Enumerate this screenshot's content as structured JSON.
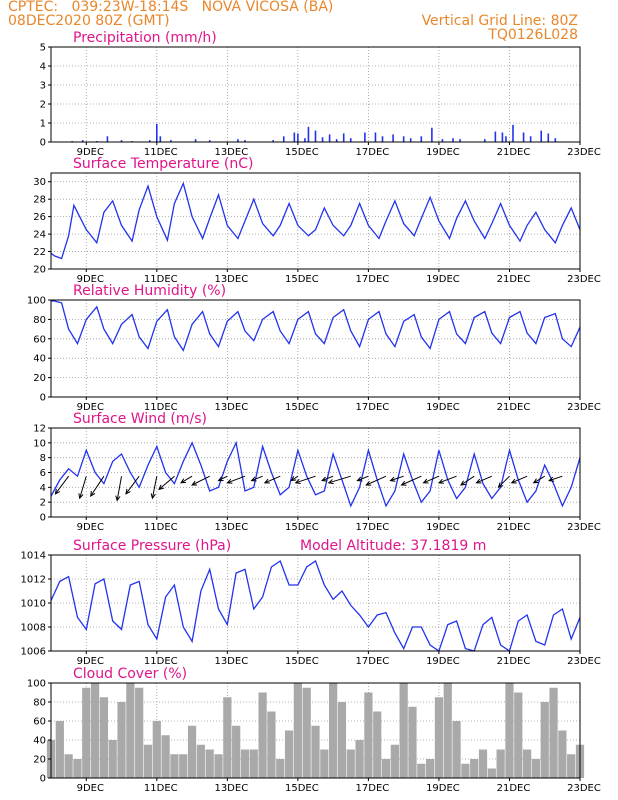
{
  "header": {
    "line1_left": "CPTEC:   039:23W-18:14S   NOVA VICOSA (BA)",
    "line2_left": "08DEC2020 80Z (GMT)",
    "line1_right": "Vertical Grid Line: 80Z",
    "line2_right": "TQ0126L028"
  },
  "x_ticks": [
    "9DEC",
    "11DEC",
    "13DEC",
    "15DEC",
    "17DEC",
    "19DEC",
    "21DEC",
    "23DEC"
  ],
  "colors": {
    "line": "#2233ee",
    "cloud": "#a9a9a9",
    "header": "#e8872b",
    "title": "#e0158a"
  },
  "chart_data": [
    {
      "type": "bar",
      "title": "Precipitation (mm/h)",
      "ylim": [
        0,
        5
      ],
      "yticks": [
        0,
        1,
        2,
        3,
        4,
        5
      ],
      "x_unit": "days since 08DEC2020 00Z",
      "x": [
        0.6,
        0.9,
        1.3,
        1.6,
        2.0,
        2.3,
        2.8,
        3.0,
        3.1,
        3.4,
        4.1,
        4.5,
        5.3,
        5.5,
        6.3,
        6.6,
        6.9,
        7.0,
        7.2,
        7.3,
        7.5,
        7.7,
        7.9,
        8.1,
        8.3,
        8.5,
        8.9,
        9.2,
        9.4,
        9.7,
        10.0,
        10.2,
        10.5,
        10.8,
        11.1,
        11.4,
        11.6,
        12.3,
        12.6,
        12.8,
        12.9,
        13.1,
        13.4,
        13.6,
        13.9,
        14.1,
        14.3
      ],
      "values": [
        0.05,
        0.1,
        0.05,
        0.3,
        0.1,
        0.05,
        0.1,
        0.95,
        0.3,
        0.1,
        0.15,
        0.1,
        0.15,
        0.1,
        0.1,
        0.3,
        0.5,
        0.45,
        0.2,
        0.8,
        0.6,
        0.25,
        0.4,
        0.15,
        0.45,
        0.2,
        0.5,
        0.5,
        0.3,
        0.4,
        0.3,
        0.2,
        0.3,
        0.75,
        0.15,
        0.2,
        0.15,
        0.15,
        0.55,
        0.5,
        0.3,
        0.9,
        0.5,
        0.3,
        0.6,
        0.45,
        0.2
      ]
    },
    {
      "type": "line",
      "title": "Surface Temperature (nC)",
      "ylim": [
        20,
        31
      ],
      "yticks": [
        20,
        22,
        24,
        26,
        28,
        30
      ],
      "x_unit": "days since 08DEC2020 00Z",
      "x": [
        0,
        0.1,
        0.3,
        0.5,
        0.65,
        1.0,
        1.3,
        1.5,
        1.75,
        2.0,
        2.3,
        2.5,
        2.75,
        3.0,
        3.3,
        3.5,
        3.75,
        4.0,
        4.3,
        4.5,
        4.75,
        5.0,
        5.3,
        5.5,
        5.75,
        6.0,
        6.3,
        6.5,
        6.75,
        7.0,
        7.3,
        7.5,
        7.75,
        8.0,
        8.3,
        8.5,
        8.75,
        9.0,
        9.3,
        9.5,
        9.75,
        10.0,
        10.3,
        10.5,
        10.75,
        11.0,
        11.3,
        11.5,
        11.75,
        12.0,
        12.3,
        12.5,
        12.75,
        13.0,
        13.3,
        13.5,
        13.75,
        14.0,
        14.3,
        14.5,
        14.75,
        15.0
      ],
      "values": [
        21.8,
        21.5,
        21.2,
        23.8,
        27.3,
        24.5,
        23.0,
        26.5,
        27.8,
        25.0,
        23.2,
        26.8,
        29.5,
        26.0,
        23.3,
        27.5,
        29.8,
        26.0,
        23.5,
        25.8,
        28.5,
        25.0,
        23.5,
        25.5,
        28.0,
        25.2,
        23.8,
        25.0,
        27.5,
        25.0,
        23.8,
        24.5,
        27.0,
        25.0,
        23.8,
        25.0,
        27.5,
        25.0,
        23.5,
        25.5,
        27.8,
        25.2,
        23.8,
        25.8,
        28.2,
        25.5,
        23.5,
        25.8,
        27.8,
        25.5,
        23.5,
        25.2,
        27.5,
        25.0,
        23.2,
        25.0,
        26.5,
        24.5,
        23.0,
        25.0,
        27.0,
        24.5
      ]
    },
    {
      "type": "line",
      "title": "Relative Humidity (%)",
      "ylim": [
        0,
        100
      ],
      "yticks": [
        0,
        20,
        40,
        60,
        80,
        100
      ],
      "x_unit": "days since 08DEC2020 00Z",
      "x": [
        0,
        0.1,
        0.3,
        0.5,
        0.75,
        1.0,
        1.3,
        1.5,
        1.75,
        2.0,
        2.3,
        2.5,
        2.75,
        3.0,
        3.3,
        3.5,
        3.75,
        4.0,
        4.3,
        4.5,
        4.75,
        5.0,
        5.3,
        5.5,
        5.75,
        6.0,
        6.3,
        6.5,
        6.75,
        7.0,
        7.3,
        7.5,
        7.75,
        8.0,
        8.3,
        8.5,
        8.75,
        9.0,
        9.3,
        9.5,
        9.75,
        10.0,
        10.3,
        10.5,
        10.75,
        11.0,
        11.3,
        11.5,
        11.75,
        12.0,
        12.3,
        12.5,
        12.75,
        13.0,
        13.3,
        13.5,
        13.75,
        14.0,
        14.3,
        14.5,
        14.75,
        15.0
      ],
      "values": [
        99,
        99,
        97,
        70,
        55,
        80,
        93,
        70,
        55,
        75,
        85,
        62,
        50,
        78,
        90,
        62,
        48,
        75,
        88,
        65,
        52,
        78,
        88,
        68,
        58,
        80,
        88,
        68,
        55,
        80,
        88,
        65,
        55,
        82,
        90,
        68,
        52,
        80,
        88,
        65,
        52,
        78,
        85,
        62,
        50,
        80,
        88,
        65,
        55,
        82,
        88,
        66,
        55,
        82,
        88,
        66,
        55,
        82,
        86,
        60,
        52,
        72
      ]
    },
    {
      "type": "line",
      "title": "Surface Wind (m/s)",
      "ylim": [
        0,
        12
      ],
      "yticks": [
        0,
        2,
        4,
        6,
        8,
        10,
        12
      ],
      "x_unit": "days since 08DEC2020 00Z",
      "x": [
        0,
        0.25,
        0.5,
        0.75,
        1.0,
        1.25,
        1.5,
        1.75,
        2.0,
        2.25,
        2.5,
        2.75,
        3.0,
        3.25,
        3.5,
        3.75,
        4.0,
        4.25,
        4.5,
        4.75,
        5.0,
        5.25,
        5.5,
        5.75,
        6.0,
        6.25,
        6.5,
        6.75,
        7.0,
        7.25,
        7.5,
        7.75,
        8.0,
        8.25,
        8.5,
        8.75,
        9.0,
        9.25,
        9.5,
        9.75,
        10.0,
        10.25,
        10.5,
        10.75,
        11.0,
        11.25,
        11.5,
        11.75,
        12.0,
        12.25,
        12.5,
        12.75,
        13.0,
        13.25,
        13.5,
        13.75,
        14.0,
        14.25,
        14.5,
        14.75,
        15.0
      ],
      "values": [
        2.8,
        5.0,
        6.5,
        5.5,
        9.0,
        6.0,
        4.5,
        7.5,
        8.5,
        6.0,
        4.0,
        7.0,
        9.5,
        6.0,
        4.5,
        7.5,
        10.0,
        7.0,
        3.5,
        4.0,
        7.5,
        10.0,
        3.5,
        4.0,
        9.5,
        6.0,
        3.0,
        4.0,
        9.0,
        5.5,
        3.0,
        3.5,
        8.5,
        5.0,
        1.5,
        4.0,
        9.0,
        5.0,
        1.5,
        3.5,
        8.5,
        5.0,
        2.0,
        3.5,
        9.0,
        5.0,
        2.5,
        4.0,
        8.5,
        4.5,
        2.5,
        4.0,
        9.0,
        5.0,
        2.0,
        3.5,
        7.0,
        4.5,
        1.5,
        4.0,
        8.0
      ],
      "arrows": {
        "x": [
          0.5,
          1.0,
          1.5,
          2.0,
          2.5,
          3.0,
          3.5,
          4.0,
          4.5,
          5.0,
          5.5,
          6.0,
          6.5,
          7.0,
          7.5,
          8.0,
          8.5,
          9.0,
          9.5,
          10.0,
          10.5,
          11.0,
          11.5,
          12.0,
          12.5,
          13.0,
          13.5,
          14.0,
          14.5
        ],
        "u": [
          -0.6,
          -0.3,
          -0.6,
          -0.2,
          -0.6,
          -0.2,
          -0.7,
          -0.5,
          -0.8,
          -0.4,
          -0.8,
          -0.5,
          -0.7,
          -0.3,
          -0.9,
          -0.5,
          -1.0,
          -0.5,
          -0.9,
          -0.6,
          -0.9,
          -0.7,
          -0.8,
          -0.6,
          -0.7,
          -0.5,
          -0.7,
          -0.5,
          -0.6
        ],
        "v": [
          -0.8,
          -1.0,
          -0.9,
          -1.1,
          -0.8,
          -1.0,
          -0.6,
          -0.3,
          -0.4,
          -0.2,
          -0.3,
          -0.2,
          -0.3,
          -0.2,
          -0.3,
          -0.2,
          -0.3,
          -0.2,
          -0.4,
          -0.2,
          -0.4,
          -0.3,
          -0.3,
          -0.4,
          -0.3,
          -0.5,
          -0.3,
          -0.3,
          -0.2
        ]
      }
    },
    {
      "type": "line",
      "title": "Surface Pressure (hPa)",
      "annotation": "Model Altitude: 37.1819 m",
      "ylim": [
        1006,
        1014
      ],
      "yticks": [
        1006,
        1008,
        1010,
        1012,
        1014
      ],
      "x_unit": "days since 08DEC2020 00Z",
      "x": [
        0,
        0.25,
        0.5,
        0.75,
        1.0,
        1.25,
        1.5,
        1.75,
        2.0,
        2.25,
        2.5,
        2.75,
        3.0,
        3.25,
        3.5,
        3.75,
        4.0,
        4.25,
        4.5,
        4.75,
        5.0,
        5.25,
        5.5,
        5.75,
        6.0,
        6.25,
        6.5,
        6.75,
        7.0,
        7.25,
        7.5,
        7.75,
        8.0,
        8.25,
        8.5,
        8.75,
        9.0,
        9.25,
        9.5,
        9.75,
        10.0,
        10.25,
        10.5,
        10.75,
        11.0,
        11.25,
        11.5,
        11.75,
        12.0,
        12.25,
        12.5,
        12.75,
        13.0,
        13.25,
        13.5,
        13.75,
        14.0,
        14.25,
        14.5,
        14.75,
        15.0
      ],
      "values": [
        1010.2,
        1011.8,
        1012.2,
        1008.8,
        1007.8,
        1011.6,
        1012.0,
        1008.5,
        1007.8,
        1011.5,
        1011.8,
        1008.2,
        1007.0,
        1010.5,
        1011.5,
        1008.0,
        1006.8,
        1011.0,
        1012.8,
        1009.5,
        1008.2,
        1012.5,
        1012.8,
        1009.5,
        1010.5,
        1013.0,
        1013.5,
        1011.5,
        1011.5,
        1013.0,
        1013.5,
        1011.5,
        1010.3,
        1011.0,
        1009.8,
        1009.0,
        1008.0,
        1009.0,
        1009.2,
        1007.5,
        1006.2,
        1008.0,
        1008.0,
        1006.5,
        1006.0,
        1008.2,
        1008.5,
        1006.2,
        1006.0,
        1008.2,
        1008.8,
        1006.5,
        1006.0,
        1008.5,
        1009.0,
        1006.8,
        1006.5,
        1009.0,
        1009.5,
        1007.0,
        1008.8
      ]
    },
    {
      "type": "bar",
      "title": "Cloud Cover (%)",
      "ylim": [
        0,
        100
      ],
      "yticks": [
        0,
        20,
        40,
        60,
        80,
        100
      ],
      "x_unit": "days since 08DEC2020 00Z",
      "x": [
        0,
        0.25,
        0.5,
        0.75,
        1.0,
        1.25,
        1.5,
        1.75,
        2.0,
        2.25,
        2.5,
        2.75,
        3.0,
        3.25,
        3.5,
        3.75,
        4.0,
        4.25,
        4.5,
        4.75,
        5.0,
        5.25,
        5.5,
        5.75,
        6.0,
        6.25,
        6.5,
        6.75,
        7.0,
        7.25,
        7.5,
        7.75,
        8.0,
        8.25,
        8.5,
        8.75,
        9.0,
        9.25,
        9.5,
        9.75,
        10.0,
        10.25,
        10.5,
        10.75,
        11.0,
        11.25,
        11.5,
        11.75,
        12.0,
        12.25,
        12.5,
        12.75,
        13.0,
        13.25,
        13.5,
        13.75,
        14.0,
        14.25,
        14.5,
        14.75,
        15.0
      ],
      "values": [
        40,
        60,
        25,
        20,
        95,
        100,
        85,
        40,
        80,
        100,
        95,
        35,
        60,
        45,
        25,
        25,
        55,
        35,
        30,
        25,
        85,
        55,
        30,
        30,
        90,
        70,
        20,
        50,
        100,
        95,
        55,
        30,
        100,
        80,
        30,
        40,
        90,
        70,
        20,
        35,
        100,
        75,
        15,
        20,
        85,
        100,
        60,
        15,
        20,
        30,
        10,
        30,
        100,
        90,
        30,
        20,
        80,
        95,
        50,
        25,
        35
      ]
    }
  ]
}
